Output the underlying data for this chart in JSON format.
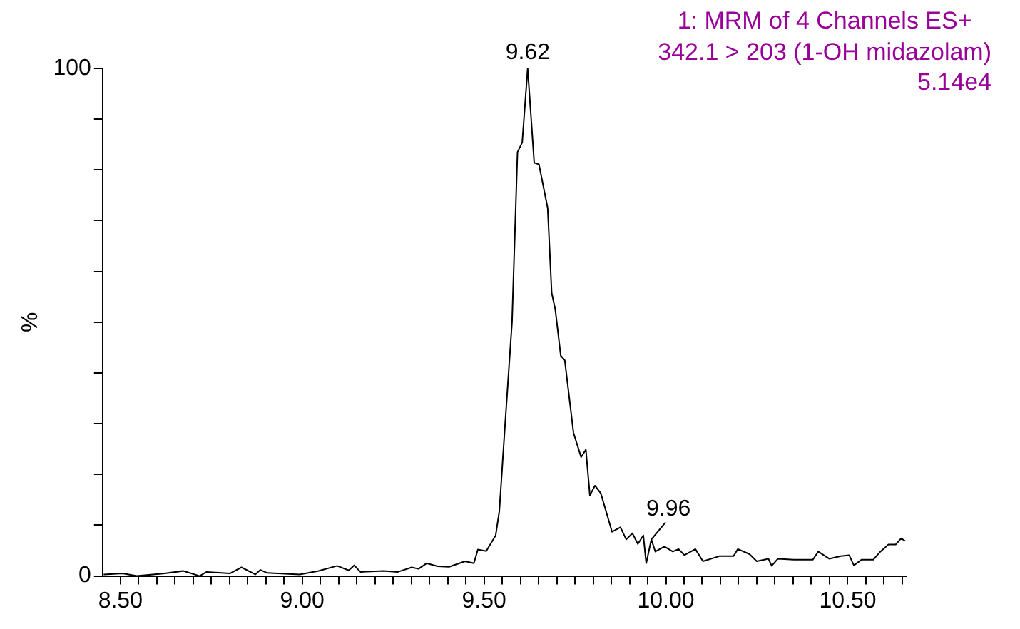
{
  "chart_data": {
    "type": "line",
    "title": "1: MRM of 4 Channels ES+",
    "subtitle": "342.1 > 203 (1-OH midazolam)",
    "ylabel": "%",
    "annotations": [
      "5.14e4",
      {
        "text": "9.62",
        "x": 9.62,
        "y": 100
      },
      {
        "text": "9.96",
        "x": 9.96,
        "y": 7.2
      }
    ],
    "x": [
      8.454,
      8.506,
      8.545,
      8.622,
      8.673,
      8.718,
      8.737,
      8.801,
      8.833,
      8.871,
      8.885,
      8.904,
      8.993,
      9.045,
      9.096,
      9.128,
      9.143,
      9.16,
      9.224,
      9.263,
      9.301,
      9.32,
      9.342,
      9.372,
      9.404,
      9.448,
      9.472,
      9.483,
      9.506,
      9.532,
      9.542,
      9.557,
      9.577,
      9.592,
      9.605,
      9.62,
      9.638,
      9.651,
      9.675,
      9.686,
      9.696,
      9.711,
      9.722,
      9.746,
      9.767,
      9.78,
      9.791,
      9.805,
      9.821,
      9.852,
      9.875,
      9.891,
      9.908,
      9.923,
      9.938,
      9.946,
      9.96,
      9.971,
      9.996,
      10.019,
      10.035,
      10.051,
      10.081,
      10.102,
      10.147,
      10.186,
      10.198,
      10.23,
      10.25,
      10.282,
      10.291,
      10.308,
      10.352,
      10.404,
      10.419,
      10.449,
      10.481,
      10.504,
      10.517,
      10.538,
      10.57,
      10.59,
      10.612,
      10.632,
      10.647,
      10.658
    ],
    "series": [
      {
        "color": "#000000",
        "values": [
          0.3,
          0.5,
          0,
          0.5,
          1,
          0,
          0.8,
          0.5,
          1.7,
          0.3,
          1.2,
          0.6,
          0.3,
          1,
          2,
          1.1,
          2.1,
          0.8,
          1,
          0.8,
          1.7,
          1.4,
          2.5,
          1.9,
          1.8,
          2.9,
          2.5,
          5.2,
          4.9,
          8,
          12.7,
          28.9,
          50,
          83.5,
          85.4,
          100,
          81.4,
          81.1,
          72.5,
          55.8,
          52.5,
          43.4,
          42.5,
          28.2,
          23.4,
          24.9,
          15.9,
          17.8,
          16.3,
          8.7,
          9.6,
          7.2,
          8.4,
          6.3,
          8,
          2.5,
          7.2,
          4.8,
          5.8,
          4.8,
          5.3,
          4.1,
          5.3,
          2.9,
          3.9,
          3.9,
          5.3,
          4.3,
          2.9,
          3.4,
          2,
          3.4,
          3.2,
          3.2,
          4.8,
          3.4,
          3.9,
          4.1,
          2.1,
          3.2,
          3.2,
          4.8,
          6.2,
          6.2,
          7.4,
          6.9
        ]
      }
    ],
    "xlim": [
      8.451,
      10.66
    ],
    "ylim": [
      0,
      100
    ],
    "xticks": [
      {
        "value": 8.5,
        "label": "8.50"
      },
      {
        "value": 8.55,
        "label": null
      },
      {
        "value": 8.6,
        "label": null
      },
      {
        "value": 8.65,
        "label": null
      },
      {
        "value": 8.7,
        "label": null
      },
      {
        "value": 8.75,
        "label": null
      },
      {
        "value": 8.8,
        "label": null
      },
      {
        "value": 8.85,
        "label": null
      },
      {
        "value": 8.9,
        "label": null
      },
      {
        "value": 8.95,
        "label": null
      },
      {
        "value": 9,
        "label": "9.00"
      },
      {
        "value": 9.05,
        "label": null
      },
      {
        "value": 9.1,
        "label": null
      },
      {
        "value": 9.15,
        "label": null
      },
      {
        "value": 9.2,
        "label": null
      },
      {
        "value": 9.25,
        "label": null
      },
      {
        "value": 9.3,
        "label": null
      },
      {
        "value": 9.35,
        "label": null
      },
      {
        "value": 9.4,
        "label": null
      },
      {
        "value": 9.45,
        "label": null
      },
      {
        "value": 9.5,
        "label": "9.50"
      },
      {
        "value": 9.55,
        "label": null
      },
      {
        "value": 9.6,
        "label": null
      },
      {
        "value": 9.65,
        "label": null
      },
      {
        "value": 9.7,
        "label": null
      },
      {
        "value": 9.75,
        "label": null
      },
      {
        "value": 9.8,
        "label": null
      },
      {
        "value": 9.85,
        "label": null
      },
      {
        "value": 9.9,
        "label": null
      },
      {
        "value": 9.95,
        "label": null
      },
      {
        "value": 10,
        "label": "10.00"
      },
      {
        "value": 10.05,
        "label": null
      },
      {
        "value": 10.1,
        "label": null
      },
      {
        "value": 10.15,
        "label": null
      },
      {
        "value": 10.2,
        "label": null
      },
      {
        "value": 10.25,
        "label": null
      },
      {
        "value": 10.3,
        "label": null
      },
      {
        "value": 10.35,
        "label": null
      },
      {
        "value": 10.4,
        "label": null
      },
      {
        "value": 10.45,
        "label": null
      },
      {
        "value": 10.5,
        "label": "10.50"
      },
      {
        "value": 10.55,
        "label": null
      },
      {
        "value": 10.6,
        "label": null
      },
      {
        "value": 10.65,
        "label": null
      }
    ],
    "yticks": [
      0,
      {
        "value": 10,
        "label": null
      },
      {
        "value": 20,
        "label": null
      },
      {
        "value": 30,
        "label": null
      },
      {
        "value": 40,
        "label": null
      },
      {
        "value": 50,
        "label": null
      },
      {
        "value": 60,
        "label": null
      },
      {
        "value": 70,
        "label": null
      },
      {
        "value": 80,
        "label": null
      },
      {
        "value": 90,
        "label": null
      },
      100
    ],
    "grid": false,
    "legend": false,
    "marker": "none",
    "line_style": "solid"
  }
}
